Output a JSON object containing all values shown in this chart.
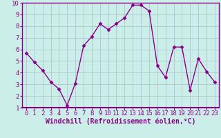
{
  "x": [
    0,
    1,
    2,
    3,
    4,
    5,
    6,
    7,
    8,
    9,
    10,
    11,
    12,
    13,
    14,
    15,
    16,
    17,
    18,
    19,
    20,
    21,
    22,
    23
  ],
  "y": [
    5.7,
    4.9,
    4.2,
    3.2,
    2.6,
    1.2,
    3.1,
    6.3,
    7.1,
    8.2,
    7.7,
    8.2,
    8.7,
    9.8,
    9.8,
    9.3,
    4.6,
    3.6,
    6.2,
    6.2,
    2.5,
    5.2,
    4.1,
    3.2
  ],
  "line_color": "#880088",
  "marker": "D",
  "marker_size": 2.5,
  "xlabel": "Windchill (Refroidissement éolien,°C)",
  "xlabel_fontsize": 7,
  "xlim": [
    -0.5,
    23.5
  ],
  "ylim": [
    1,
    10
  ],
  "xticks": [
    0,
    1,
    2,
    3,
    4,
    5,
    6,
    7,
    8,
    9,
    10,
    11,
    12,
    13,
    14,
    15,
    16,
    17,
    18,
    19,
    20,
    21,
    22,
    23
  ],
  "yticks": [
    1,
    2,
    3,
    4,
    5,
    6,
    7,
    8,
    9,
    10
  ],
  "background_color": "#cceee8",
  "grid_color": "#aabbcc",
  "tick_label_fontsize": 6.5,
  "linewidth": 1.0,
  "spine_color": "#880088"
}
